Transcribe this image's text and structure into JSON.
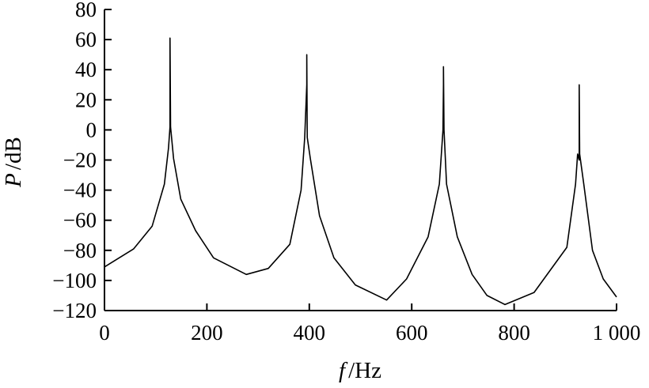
{
  "chart_data": {
    "type": "line",
    "title": "",
    "xlabel_var": "f",
    "xlabel_unit": "/Hz",
    "ylabel_var": "P",
    "ylabel_unit": "/dB",
    "xlim": [
      0,
      1000
    ],
    "ylim": [
      -120,
      80
    ],
    "xticks": [
      0,
      200,
      400,
      600,
      800,
      1000
    ],
    "xtick_labels": [
      "0",
      "200",
      "400",
      "600",
      "800",
      "1 000"
    ],
    "yticks": [
      80,
      60,
      40,
      20,
      0,
      -20,
      -40,
      -60,
      -80,
      -100,
      -120
    ],
    "ytick_labels": [
      "80",
      "60",
      "40",
      "20",
      "0",
      "−20",
      "−40",
      "−60",
      "−80",
      "−100",
      "−120"
    ],
    "grid": false,
    "line_color": "#000000",
    "series": [
      {
        "x": [
          0,
          57,
          93,
          117,
          125,
          128,
          128,
          129,
          135,
          149,
          178,
          213,
          277,
          320,
          362,
          384,
          391,
          395,
          395,
          396,
          402,
          420,
          448,
          490,
          551,
          590,
          632,
          654,
          661,
          662,
          662,
          663,
          668,
          689,
          718,
          747,
          782,
          839,
          903,
          920,
          924,
          927,
          927,
          928,
          936,
          953,
          974,
          1000
        ],
        "y": [
          -91,
          -79,
          -64,
          -36,
          -12,
          2,
          61,
          2,
          -19,
          -46,
          -67,
          -85,
          -96,
          -92,
          -76,
          -40,
          -5,
          30,
          50,
          -5,
          -19,
          -57,
          -85,
          -103,
          -113,
          -99,
          -71,
          -36,
          0,
          30,
          42,
          0,
          -36,
          -71,
          -96,
          -110,
          -116,
          -108,
          -78,
          -36,
          -16,
          -20,
          30,
          -16,
          -36,
          -80,
          -99,
          -111
        ]
      }
    ]
  }
}
